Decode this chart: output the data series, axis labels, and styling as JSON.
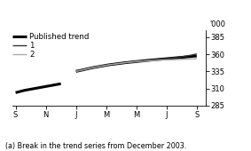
{
  "unit_label": "'000",
  "footnote": "(a) Break in the trend series from December 2003.",
  "ylim": [
    285,
    395
  ],
  "yticks": [
    285,
    310,
    335,
    360,
    385
  ],
  "x_tick_labels": [
    "S",
    "N",
    "J",
    "M",
    "M",
    "J",
    "S"
  ],
  "legend_entries": [
    "Published trend",
    "1",
    "2"
  ],
  "published_color": "#000000",
  "line1_color": "#333333",
  "line2_color": "#aaaaaa",
  "bg_color": "#ffffff",
  "published_lw": 2.2,
  "line1_lw": 1.0,
  "line2_lw": 1.0,
  "legend_fontsize": 6.2,
  "tick_fontsize": 6.0,
  "footnote_fontsize": 5.8,
  "seg1_x": [
    0.0,
    0.25,
    0.5,
    0.75,
    1.0,
    1.25,
    1.5
  ],
  "seg1_y": [
    304,
    307,
    309,
    311,
    313,
    315,
    317
  ],
  "seg2_pub_x": [
    2.0,
    2.25,
    2.5,
    2.75,
    3.0,
    3.25,
    3.5,
    3.75,
    4.0,
    4.25,
    4.5,
    4.75,
    5.0,
    5.25,
    5.5,
    5.75,
    6.0
  ],
  "seg2_pub_y": [
    335,
    337.5,
    340,
    342,
    344,
    345.5,
    347,
    348.2,
    349.5,
    350.5,
    351.5,
    352.5,
    353.5,
    354.5,
    355.5,
    356.5,
    357.5
  ],
  "line1_x": [
    2.0,
    2.25,
    2.5,
    2.75,
    3.0,
    3.25,
    3.5,
    3.75,
    4.0,
    4.25,
    4.5,
    4.75,
    5.0,
    5.25,
    5.5,
    5.75,
    6.0
  ],
  "line1_y": [
    335,
    337.5,
    340,
    342,
    344,
    345.5,
    347,
    348.2,
    349.5,
    350.5,
    351.5,
    352.5,
    353.5,
    354.8,
    356.2,
    358.0,
    360.5
  ],
  "line2_x": [
    2.0,
    2.25,
    2.5,
    2.75,
    3.0,
    3.25,
    3.5,
    3.75,
    4.0,
    4.25,
    4.5,
    4.75,
    5.0,
    5.25,
    5.5,
    5.75,
    6.0
  ],
  "line2_y": [
    335,
    337.5,
    340,
    342,
    344,
    345.5,
    347,
    348.2,
    349.5,
    350.0,
    350.8,
    351.2,
    351.8,
    352.0,
    352.5,
    353.0,
    353.5
  ]
}
